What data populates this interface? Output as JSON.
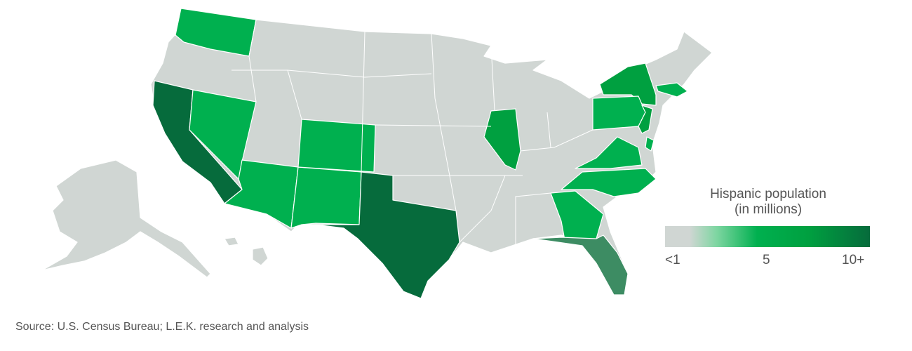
{
  "colors": {
    "none": "#d0d6d3",
    "low": "#00b04f",
    "mid": "#00a040",
    "florida": "#3d8c63",
    "high": "#066b3c"
  },
  "legend": {
    "title_line1": "Hispanic population",
    "title_line2": "(in millions)",
    "ticks": [
      "<1",
      "5",
      "10+"
    ],
    "range": [
      1,
      10
    ]
  },
  "states": [
    {
      "name": "Washington",
      "level": "low"
    },
    {
      "name": "California",
      "level": "high"
    },
    {
      "name": "Nevada",
      "level": "low"
    },
    {
      "name": "Arizona",
      "level": "low"
    },
    {
      "name": "New Mexico",
      "level": "low"
    },
    {
      "name": "Colorado",
      "level": "low"
    },
    {
      "name": "Texas",
      "level": "high"
    },
    {
      "name": "Illinois",
      "level": "mid"
    },
    {
      "name": "New York",
      "level": "mid"
    },
    {
      "name": "Pennsylvania",
      "level": "low"
    },
    {
      "name": "New Jersey",
      "level": "mid"
    },
    {
      "name": "Massachusetts",
      "level": "low"
    },
    {
      "name": "Virginia",
      "level": "low"
    },
    {
      "name": "North Carolina",
      "level": "low"
    },
    {
      "name": "Georgia",
      "level": "low"
    },
    {
      "name": "Florida",
      "level": "florida"
    },
    {
      "name": "Delaware",
      "level": "low"
    }
  ],
  "source": "Source: U.S. Census Bureau; L.E.K. research and analysis"
}
